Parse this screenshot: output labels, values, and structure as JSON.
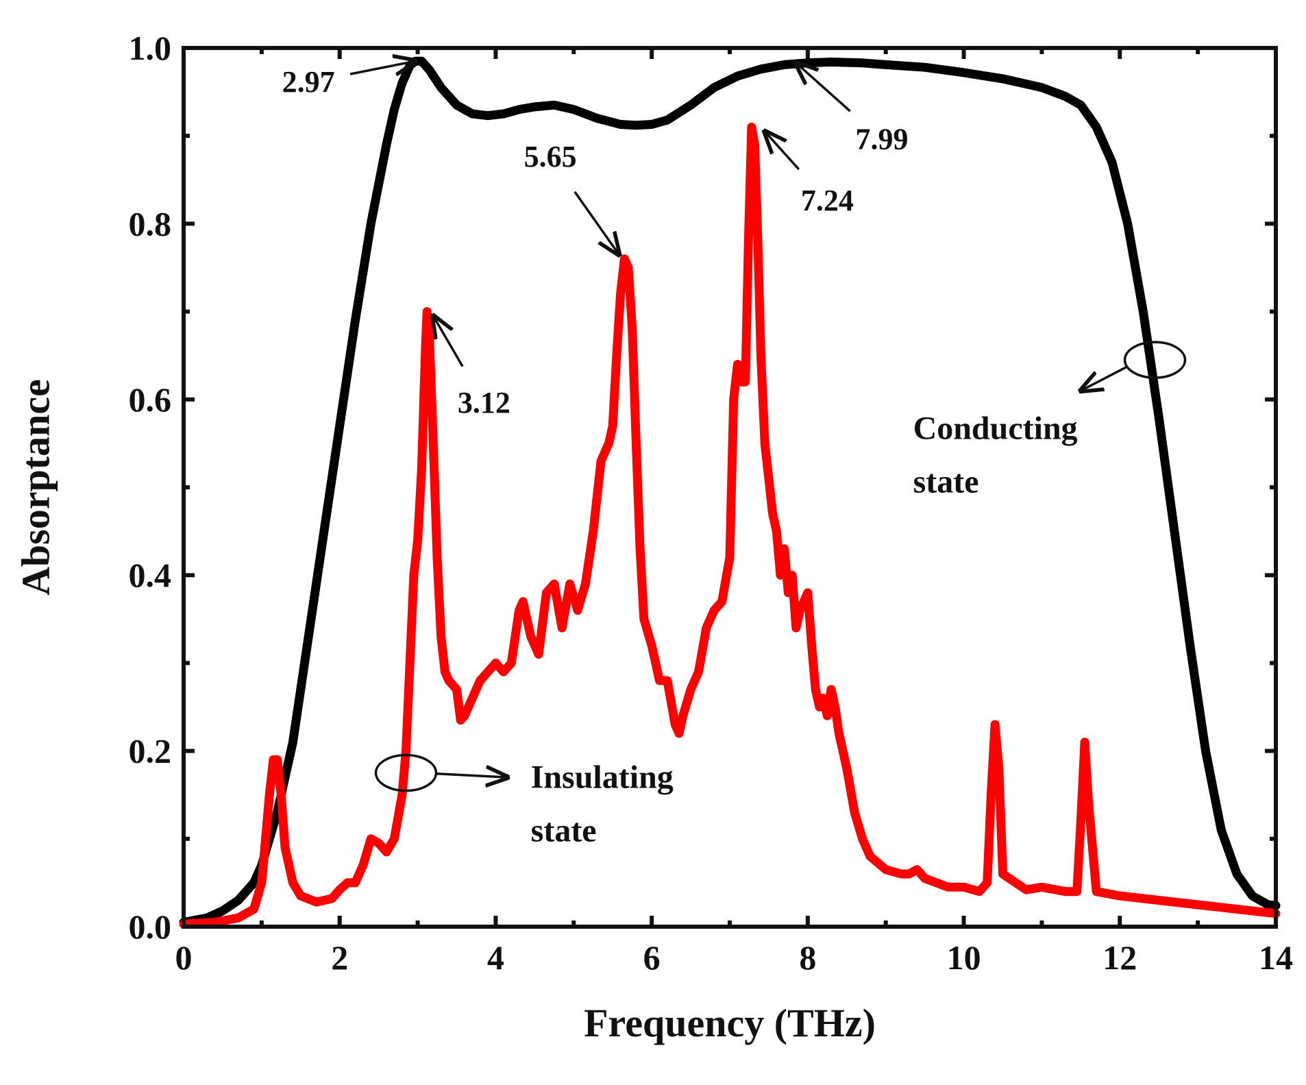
{
  "chart_data": {
    "type": "line",
    "title": "",
    "xlabel": "Frequency (THz)",
    "ylabel": "Absorptance",
    "xlim": [
      0,
      14
    ],
    "ylim": [
      0,
      1.0
    ],
    "xticks": [
      0,
      2,
      4,
      6,
      8,
      10,
      12,
      14
    ],
    "xtick_labels": [
      "0",
      "2",
      "4",
      "6",
      "8",
      "10",
      "12",
      "14"
    ],
    "yticks": [
      0,
      0.2,
      0.4,
      0.6,
      0.8,
      1.0
    ],
    "ytick_labels": [
      "0.0",
      "0.2",
      "0.4",
      "0.6",
      "0.8",
      "1.0"
    ],
    "grid": false,
    "series": [
      {
        "name": "Conducting state",
        "color": "#000000",
        "x": [
          0,
          0.3,
          0.5,
          0.7,
          0.9,
          1.0,
          1.1,
          1.2,
          1.3,
          1.4,
          1.5,
          1.6,
          1.8,
          2.0,
          2.2,
          2.4,
          2.6,
          2.7,
          2.8,
          2.9,
          2.97,
          3.05,
          3.15,
          3.3,
          3.5,
          3.7,
          3.9,
          4.1,
          4.3,
          4.5,
          4.75,
          5.0,
          5.3,
          5.6,
          5.8,
          6.0,
          6.2,
          6.5,
          6.8,
          7.1,
          7.4,
          7.7,
          7.99,
          8.3,
          8.7,
          9.0,
          9.5,
          10.0,
          10.5,
          11.0,
          11.3,
          11.5,
          11.7,
          11.9,
          12.1,
          12.3,
          12.5,
          12.7,
          12.9,
          13.1,
          13.3,
          13.5,
          13.7,
          13.9,
          14.0
        ],
        "values": [
          0.005,
          0.01,
          0.018,
          0.03,
          0.05,
          0.07,
          0.1,
          0.13,
          0.17,
          0.21,
          0.27,
          0.33,
          0.45,
          0.57,
          0.69,
          0.8,
          0.89,
          0.93,
          0.96,
          0.98,
          0.985,
          0.985,
          0.975,
          0.955,
          0.935,
          0.925,
          0.923,
          0.925,
          0.93,
          0.933,
          0.935,
          0.93,
          0.92,
          0.913,
          0.912,
          0.913,
          0.918,
          0.935,
          0.955,
          0.968,
          0.976,
          0.981,
          0.983,
          0.984,
          0.983,
          0.981,
          0.978,
          0.972,
          0.965,
          0.955,
          0.945,
          0.935,
          0.91,
          0.87,
          0.8,
          0.7,
          0.58,
          0.45,
          0.32,
          0.2,
          0.11,
          0.06,
          0.035,
          0.025,
          0.024
        ]
      },
      {
        "name": "Insulating state",
        "color": "#ff0000",
        "x": [
          0,
          0.4,
          0.7,
          0.9,
          1.0,
          1.05,
          1.1,
          1.15,
          1.2,
          1.25,
          1.3,
          1.4,
          1.5,
          1.7,
          1.9,
          2.0,
          2.1,
          2.2,
          2.3,
          2.4,
          2.5,
          2.6,
          2.7,
          2.8,
          2.85,
          2.9,
          2.95,
          3.0,
          3.05,
          3.1,
          3.12,
          3.15,
          3.2,
          3.25,
          3.3,
          3.35,
          3.4,
          3.5,
          3.55,
          3.6,
          3.8,
          4.0,
          4.1,
          4.2,
          4.3,
          4.35,
          4.45,
          4.55,
          4.65,
          4.75,
          4.85,
          4.95,
          5.05,
          5.15,
          5.25,
          5.35,
          5.45,
          5.5,
          5.55,
          5.6,
          5.65,
          5.7,
          5.75,
          5.8,
          5.85,
          5.9,
          6.0,
          6.1,
          6.2,
          6.3,
          6.35,
          6.4,
          6.5,
          6.6,
          6.7,
          6.8,
          6.9,
          7.0,
          7.05,
          7.1,
          7.15,
          7.2,
          7.24,
          7.28,
          7.32,
          7.36,
          7.4,
          7.45,
          7.5,
          7.55,
          7.6,
          7.65,
          7.7,
          7.75,
          7.8,
          7.85,
          7.9,
          7.95,
          8.0,
          8.05,
          8.1,
          8.15,
          8.2,
          8.25,
          8.3,
          8.35,
          8.4,
          8.5,
          8.6,
          8.7,
          8.8,
          9.0,
          9.2,
          9.3,
          9.4,
          9.5,
          9.8,
          10.0,
          10.2,
          10.3,
          10.35,
          10.4,
          10.45,
          10.5,
          10.8,
          11.0,
          11.3,
          11.45,
          11.5,
          11.55,
          11.6,
          11.7,
          12.0,
          12.5,
          13.0,
          13.5,
          14.0
        ],
        "values": [
          0.003,
          0.005,
          0.01,
          0.02,
          0.05,
          0.1,
          0.15,
          0.19,
          0.19,
          0.15,
          0.09,
          0.05,
          0.035,
          0.028,
          0.032,
          0.042,
          0.05,
          0.05,
          0.07,
          0.1,
          0.095,
          0.085,
          0.1,
          0.15,
          0.2,
          0.3,
          0.4,
          0.44,
          0.52,
          0.66,
          0.7,
          0.67,
          0.55,
          0.42,
          0.33,
          0.29,
          0.28,
          0.27,
          0.235,
          0.24,
          0.28,
          0.3,
          0.29,
          0.3,
          0.36,
          0.37,
          0.33,
          0.31,
          0.38,
          0.39,
          0.34,
          0.39,
          0.36,
          0.39,
          0.45,
          0.53,
          0.55,
          0.57,
          0.65,
          0.72,
          0.76,
          0.75,
          0.68,
          0.55,
          0.43,
          0.35,
          0.32,
          0.28,
          0.28,
          0.23,
          0.22,
          0.24,
          0.27,
          0.29,
          0.34,
          0.36,
          0.37,
          0.42,
          0.6,
          0.64,
          0.62,
          0.62,
          0.78,
          0.91,
          0.89,
          0.78,
          0.65,
          0.55,
          0.51,
          0.47,
          0.45,
          0.4,
          0.43,
          0.38,
          0.4,
          0.34,
          0.36,
          0.37,
          0.38,
          0.32,
          0.27,
          0.25,
          0.26,
          0.24,
          0.27,
          0.25,
          0.22,
          0.18,
          0.13,
          0.1,
          0.08,
          0.065,
          0.06,
          0.06,
          0.065,
          0.055,
          0.045,
          0.045,
          0.04,
          0.05,
          0.15,
          0.23,
          0.18,
          0.06,
          0.042,
          0.045,
          0.04,
          0.04,
          0.12,
          0.21,
          0.14,
          0.04,
          0.035,
          0.03,
          0.025,
          0.02,
          0.015
        ]
      }
    ],
    "annotations": [
      {
        "label": "2.97",
        "series": "Conducting state",
        "target": [
          2.97,
          0.985
        ],
        "text_at": [
          1.6,
          0.95
        ]
      },
      {
        "label": "7.99",
        "series": "Conducting state",
        "target": [
          7.85,
          0.983
        ],
        "text_at": [
          8.95,
          0.885
        ]
      },
      {
        "label": "3.12",
        "series": "Insulating state",
        "target": [
          3.2,
          0.695
        ],
        "text_at": [
          3.85,
          0.585
        ]
      },
      {
        "label": "5.65",
        "series": "Insulating state",
        "target": [
          5.58,
          0.765
        ],
        "text_at": [
          4.7,
          0.865
        ]
      },
      {
        "label": "7.24",
        "series": "Insulating state",
        "target": [
          7.45,
          0.905
        ],
        "text_at": [
          8.25,
          0.815
        ]
      }
    ],
    "legend_markers": [
      {
        "label_lines": [
          "Conducting",
          "state"
        ],
        "ellipse_at": [
          12.45,
          0.645
        ],
        "arrow_to": [
          11.5,
          0.61
        ],
        "text_at": [
          9.35,
          0.555
        ]
      },
      {
        "label_lines": [
          "Insulating",
          "state"
        ],
        "ellipse_at": [
          2.85,
          0.175
        ],
        "arrow_to": [
          4.15,
          0.17
        ],
        "text_at": [
          4.45,
          0.158
        ]
      }
    ]
  }
}
